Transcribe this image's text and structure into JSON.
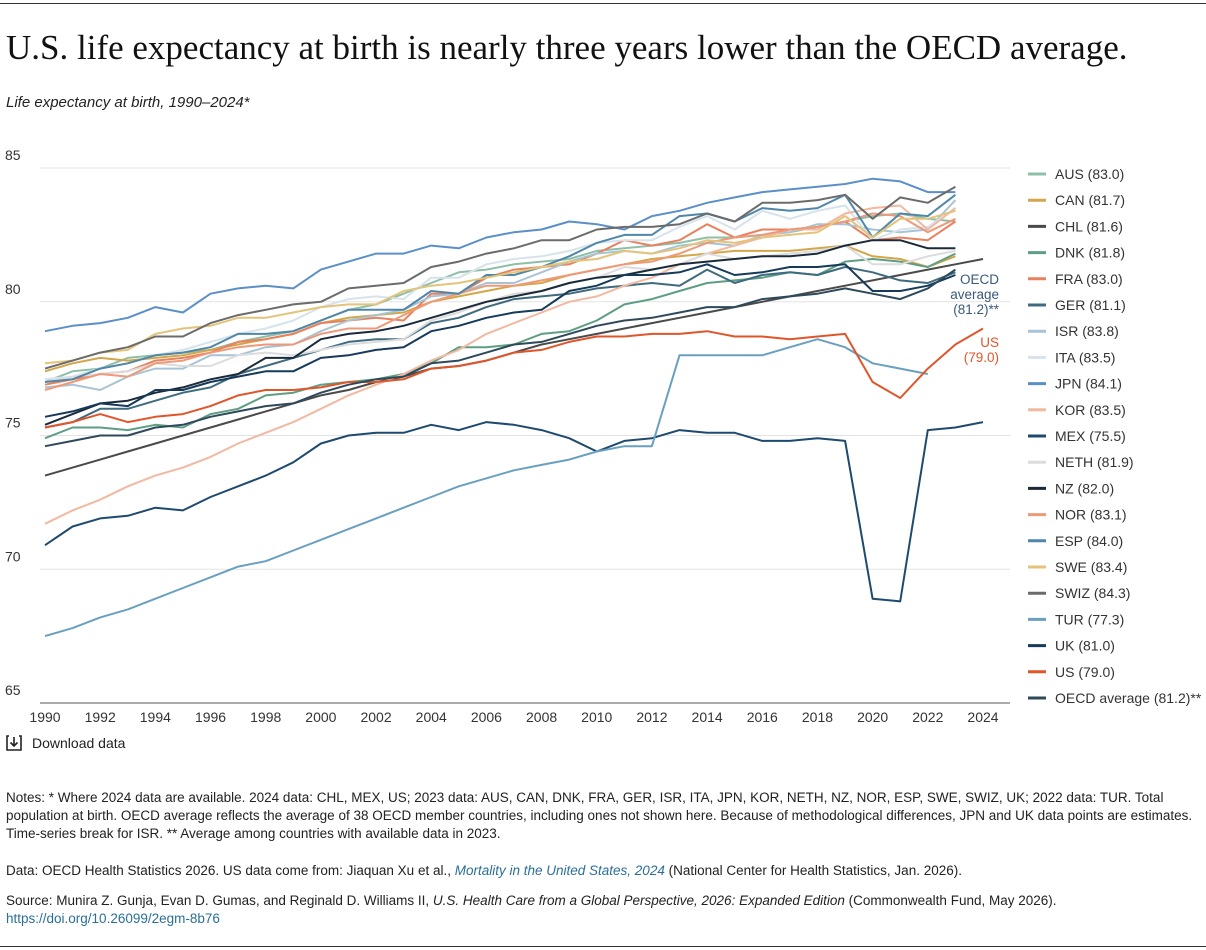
{
  "chart_data": {
    "type": "line",
    "title": "U.S. life expectancy at birth is nearly three years lower than the OECD average.",
    "subtitle": "Life expectancy at birth, 1990–2024*",
    "x": [
      1990,
      1991,
      1992,
      1993,
      1994,
      1995,
      1996,
      1997,
      1998,
      1999,
      2000,
      2001,
      2002,
      2003,
      2004,
      2005,
      2006,
      2007,
      2008,
      2009,
      2010,
      2011,
      2012,
      2013,
      2014,
      2015,
      2016,
      2017,
      2018,
      2019,
      2020,
      2021,
      2022,
      2023,
      2024
    ],
    "xlim": [
      1990,
      2024
    ],
    "xticks": [
      1990,
      1992,
      1994,
      1996,
      1998,
      2000,
      2002,
      2004,
      2006,
      2008,
      2010,
      2012,
      2014,
      2016,
      2018,
      2020,
      2022,
      2024
    ],
    "ylim": [
      65,
      85
    ],
    "yticks": [
      65,
      70,
      75,
      80,
      85
    ],
    "grid": true,
    "series": [
      {
        "name": "AUS (83.0)",
        "color": "#8fbfa8",
        "values": [
          77.0,
          77.4,
          77.5,
          77.9,
          78.0,
          78.1,
          78.2,
          78.5,
          78.7,
          78.9,
          79.3,
          79.7,
          79.9,
          80.3,
          80.7,
          81.1,
          81.2,
          81.4,
          81.5,
          81.6,
          81.9,
          82.0,
          82.1,
          82.2,
          82.4,
          82.4,
          82.5,
          82.6,
          82.8,
          83.0,
          83.2,
          83.3,
          83.1,
          83.0,
          null
        ]
      },
      {
        "name": "CAN (81.7)",
        "color": "#d4a64a",
        "values": [
          77.4,
          77.7,
          77.9,
          77.8,
          77.9,
          78.0,
          78.2,
          78.4,
          78.6,
          78.8,
          79.2,
          79.4,
          79.5,
          79.6,
          80.0,
          80.2,
          80.4,
          80.6,
          80.7,
          81.0,
          81.2,
          81.4,
          81.6,
          81.7,
          81.8,
          81.9,
          81.9,
          81.9,
          82.0,
          82.1,
          81.7,
          81.6,
          81.3,
          81.7,
          null
        ]
      },
      {
        "name": "CHL (81.6)",
        "color": "#4a4a4a",
        "values": [
          73.5,
          73.8,
          74.1,
          74.4,
          74.7,
          75.0,
          75.3,
          75.6,
          75.9,
          76.2,
          76.5,
          76.7,
          77.0,
          77.2,
          77.5,
          77.6,
          77.8,
          78.1,
          78.4,
          78.6,
          78.8,
          79.0,
          79.2,
          79.4,
          79.6,
          79.8,
          80.0,
          80.2,
          80.4,
          80.6,
          80.8,
          81.0,
          81.2,
          81.4,
          81.6
        ]
      },
      {
        "name": "DNK (81.8)",
        "color": "#5e9e82",
        "values": [
          74.9,
          75.3,
          75.3,
          75.2,
          75.4,
          75.3,
          75.8,
          76.0,
          76.5,
          76.6,
          76.9,
          77.0,
          77.1,
          77.3,
          77.7,
          78.3,
          78.3,
          78.4,
          78.8,
          78.9,
          79.3,
          79.9,
          80.1,
          80.4,
          80.7,
          80.8,
          80.9,
          81.1,
          81.0,
          81.5,
          81.6,
          81.5,
          81.3,
          81.8,
          null
        ]
      },
      {
        "name": "FRA (83.0)",
        "color": "#e8825e",
        "values": [
          76.9,
          77.1,
          77.3,
          77.4,
          77.8,
          77.9,
          78.1,
          78.5,
          78.6,
          78.8,
          79.2,
          79.3,
          79.4,
          79.3,
          80.3,
          80.3,
          80.9,
          81.2,
          81.3,
          81.4,
          81.8,
          82.3,
          82.1,
          82.3,
          82.9,
          82.4,
          82.7,
          82.7,
          82.8,
          83.0,
          82.3,
          82.4,
          82.3,
          83.0,
          null
        ]
      },
      {
        "name": "GER (81.1)",
        "color": "#3f6b7f",
        "values": [
          75.3,
          75.5,
          76.0,
          76.0,
          76.3,
          76.6,
          76.8,
          77.3,
          77.6,
          77.9,
          78.2,
          78.5,
          78.6,
          78.6,
          79.2,
          79.4,
          79.8,
          80.1,
          80.2,
          80.3,
          80.5,
          80.6,
          80.7,
          80.6,
          81.2,
          80.7,
          81.0,
          81.1,
          81.0,
          81.3,
          81.1,
          80.8,
          80.7,
          81.1,
          null
        ]
      },
      {
        "name": "ISR (83.8)",
        "color": "#a8c4d4",
        "values": [
          76.8,
          76.9,
          76.7,
          77.2,
          77.5,
          77.5,
          78.0,
          78.0,
          78.3,
          78.4,
          78.9,
          79.3,
          79.5,
          79.7,
          80.2,
          80.3,
          80.7,
          80.7,
          81.1,
          81.5,
          81.8,
          81.9,
          81.8,
          82.1,
          82.2,
          82.1,
          82.5,
          82.6,
          82.9,
          82.9,
          82.7,
          82.6,
          82.7,
          83.8,
          null
        ]
      },
      {
        "name": "ITA (83.5)",
        "color": "#d6e3ec",
        "values": [
          77.1,
          77.2,
          77.5,
          77.7,
          78.0,
          78.2,
          78.5,
          78.8,
          79.0,
          79.3,
          79.8,
          80.1,
          80.2,
          80.1,
          80.9,
          80.9,
          81.4,
          81.6,
          81.7,
          81.9,
          82.2,
          82.3,
          82.3,
          82.8,
          83.2,
          82.7,
          83.4,
          83.1,
          83.4,
          83.6,
          82.3,
          82.7,
          82.8,
          83.5,
          null
        ]
      },
      {
        "name": "JPN (84.1)",
        "color": "#5b8fc7",
        "values": [
          78.9,
          79.1,
          79.2,
          79.4,
          79.8,
          79.6,
          80.3,
          80.5,
          80.6,
          80.5,
          81.2,
          81.5,
          81.8,
          81.8,
          82.1,
          82.0,
          82.4,
          82.6,
          82.7,
          83.0,
          82.9,
          82.7,
          83.2,
          83.4,
          83.7,
          83.9,
          84.1,
          84.2,
          84.3,
          84.4,
          84.6,
          84.5,
          84.1,
          84.1,
          null
        ]
      },
      {
        "name": "KOR (83.5)",
        "color": "#f2b8a0",
        "values": [
          71.7,
          72.2,
          72.6,
          73.1,
          73.5,
          73.8,
          74.2,
          74.7,
          75.1,
          75.5,
          76.0,
          76.5,
          76.9,
          77.3,
          77.8,
          78.2,
          78.8,
          79.2,
          79.6,
          80.0,
          80.2,
          80.6,
          80.9,
          81.4,
          81.8,
          82.1,
          82.4,
          82.7,
          82.7,
          83.3,
          83.5,
          83.6,
          82.7,
          83.5,
          null
        ]
      },
      {
        "name": "MEX (75.5)",
        "color": "#1e4a6e",
        "values": [
          70.9,
          71.6,
          71.9,
          72.0,
          72.3,
          72.2,
          72.7,
          73.1,
          73.5,
          74.0,
          74.7,
          75.0,
          75.1,
          75.1,
          75.4,
          75.2,
          75.5,
          75.4,
          75.2,
          74.9,
          74.4,
          74.8,
          74.9,
          75.2,
          75.1,
          75.1,
          74.8,
          74.8,
          74.9,
          74.8,
          68.9,
          68.8,
          75.2,
          75.3,
          75.5
        ]
      },
      {
        "name": "NETH (81.9)",
        "color": "#dcdcdc",
        "values": [
          77.0,
          77.2,
          77.3,
          77.4,
          77.7,
          77.6,
          77.6,
          78.0,
          78.1,
          78.0,
          78.2,
          78.4,
          78.5,
          78.6,
          79.3,
          79.6,
          80.0,
          80.3,
          80.4,
          80.7,
          80.9,
          81.3,
          81.2,
          81.4,
          81.8,
          81.6,
          81.7,
          81.8,
          81.9,
          82.1,
          81.4,
          81.4,
          81.7,
          81.9,
          null
        ]
      },
      {
        "name": "NZ (82.0)",
        "color": "#1a2a3a",
        "values": [
          75.4,
          75.8,
          76.2,
          76.3,
          76.6,
          76.8,
          77.1,
          77.3,
          77.9,
          77.9,
          78.6,
          78.8,
          78.9,
          79.1,
          79.4,
          79.7,
          80.0,
          80.2,
          80.4,
          80.7,
          80.9,
          81.0,
          81.2,
          81.4,
          81.5,
          81.6,
          81.7,
          81.7,
          81.8,
          82.1,
          82.3,
          82.3,
          82.0,
          82.0,
          null
        ]
      },
      {
        "name": "NOR (83.1)",
        "color": "#ee9a7a",
        "values": [
          76.7,
          77.0,
          77.3,
          77.2,
          77.7,
          77.8,
          78.1,
          78.3,
          78.4,
          78.4,
          78.8,
          79.0,
          79.0,
          79.5,
          80.0,
          80.3,
          80.6,
          80.6,
          80.8,
          81.0,
          81.2,
          81.4,
          81.5,
          81.8,
          82.2,
          82.4,
          82.5,
          82.7,
          82.8,
          83.0,
          83.3,
          83.2,
          82.6,
          83.1,
          null
        ]
      },
      {
        "name": "ESP (84.0)",
        "color": "#4f87a8",
        "values": [
          77.0,
          77.1,
          77.5,
          77.7,
          78.0,
          78.1,
          78.3,
          78.8,
          78.8,
          78.9,
          79.3,
          79.7,
          79.7,
          79.7,
          80.4,
          80.3,
          81.0,
          81.0,
          81.3,
          81.7,
          82.2,
          82.5,
          82.5,
          83.2,
          83.3,
          83.0,
          83.5,
          83.4,
          83.5,
          84.0,
          82.4,
          83.3,
          83.2,
          84.0,
          null
        ]
      },
      {
        "name": "SWE (83.4)",
        "color": "#e3c47a",
        "values": [
          77.7,
          77.8,
          78.1,
          78.2,
          78.8,
          79.0,
          79.1,
          79.4,
          79.4,
          79.6,
          79.8,
          79.9,
          79.9,
          80.4,
          80.6,
          80.7,
          80.9,
          81.1,
          81.3,
          81.5,
          81.6,
          81.9,
          81.8,
          82.0,
          82.3,
          82.2,
          82.4,
          82.5,
          82.6,
          83.2,
          82.4,
          83.1,
          83.1,
          83.4,
          null
        ]
      },
      {
        "name": "SWIZ (84.3)",
        "color": "#6b6b6b",
        "values": [
          77.5,
          77.8,
          78.1,
          78.3,
          78.7,
          78.7,
          79.2,
          79.5,
          79.7,
          79.9,
          80.0,
          80.5,
          80.6,
          80.7,
          81.3,
          81.5,
          81.8,
          82.0,
          82.3,
          82.3,
          82.7,
          82.8,
          82.8,
          82.9,
          83.3,
          83.0,
          83.7,
          83.7,
          83.8,
          84.0,
          83.1,
          83.9,
          83.7,
          84.3,
          null
        ]
      },
      {
        "name": "TUR (77.3)",
        "color": "#6aa0bf",
        "values": [
          67.5,
          67.8,
          68.2,
          68.5,
          68.9,
          69.3,
          69.7,
          70.1,
          70.3,
          70.7,
          71.1,
          71.5,
          71.9,
          72.3,
          72.7,
          73.1,
          73.4,
          73.7,
          73.9,
          74.1,
          74.4,
          74.6,
          74.6,
          78.0,
          78.0,
          78.0,
          78.0,
          78.3,
          78.6,
          78.3,
          77.7,
          77.5,
          77.3,
          null,
          null
        ]
      },
      {
        "name": "UK (81.0)",
        "color": "#163a5a",
        "values": [
          75.7,
          75.9,
          76.2,
          76.1,
          76.7,
          76.7,
          77.0,
          77.2,
          77.4,
          77.4,
          77.9,
          78.0,
          78.2,
          78.3,
          78.9,
          79.1,
          79.4,
          79.6,
          79.7,
          80.4,
          80.6,
          81.0,
          81.0,
          81.1,
          81.4,
          81.0,
          81.1,
          81.3,
          81.3,
          81.4,
          80.4,
          80.4,
          80.6,
          81.0,
          null
        ]
      },
      {
        "name": "US (79.0)",
        "color": "#e0562b",
        "values": [
          75.3,
          75.5,
          75.8,
          75.5,
          75.7,
          75.8,
          76.1,
          76.5,
          76.7,
          76.7,
          76.8,
          77.0,
          77.0,
          77.1,
          77.5,
          77.6,
          77.8,
          78.1,
          78.2,
          78.5,
          78.7,
          78.7,
          78.8,
          78.8,
          78.9,
          78.7,
          78.7,
          78.6,
          78.7,
          78.8,
          77.0,
          76.4,
          77.5,
          78.4,
          79.0
        ]
      },
      {
        "name": "OECD average (81.2)**",
        "color": "#2e4a5a",
        "values": [
          74.6,
          74.8,
          75.0,
          75.0,
          75.3,
          75.4,
          75.7,
          75.9,
          76.1,
          76.2,
          76.6,
          76.9,
          77.1,
          77.2,
          77.7,
          77.8,
          78.1,
          78.4,
          78.5,
          78.8,
          79.1,
          79.3,
          79.4,
          79.6,
          79.8,
          79.8,
          80.1,
          80.2,
          80.3,
          80.5,
          80.3,
          80.1,
          80.5,
          81.2,
          null
        ]
      }
    ],
    "annotations": [
      {
        "lines": [
          "OECD",
          "average",
          "(81.2)**"
        ],
        "color": "#3a5a7a"
      },
      {
        "lines": [
          "US",
          "(79.0)"
        ],
        "color": "#e0562b"
      }
    ]
  },
  "download": "Download data",
  "notes": "Notes: * Where 2024 data are available. 2024 data: CHL, MEX, US; 2023 data: AUS, CAN, DNK, FRA, GER, ISR, ITA, JPN, KOR, NETH, NZ, NOR, ESP, SWE, SWIZ, UK; 2022 data: TUR. Total population at birth. OECD average reflects the average of 38 OECD member countries, including ones not shown here. Because of methodological differences, JPN and UK data points are estimates. Time-series break for ISR. ** Average among countries with available data in 2023.",
  "data_line": {
    "before": "Data: OECD Health Statistics 2026. US data come from: Jiaquan Xu et al., ",
    "link": "Mortality in the United States, 2024",
    "after": " (National Center for Health Statistics, Jan. 2026)."
  },
  "source_line": {
    "before": "Source: Munira Z. Gunja, Evan D. Gumas, and Reginald D. Williams II, ",
    "italic": "U.S. Health Care from a Global Perspective, 2026: Expanded Edition",
    "after": " (Commonwealth Fund, May 2026).",
    "url": "https://doi.org/10.26099/2egm-8b76"
  }
}
